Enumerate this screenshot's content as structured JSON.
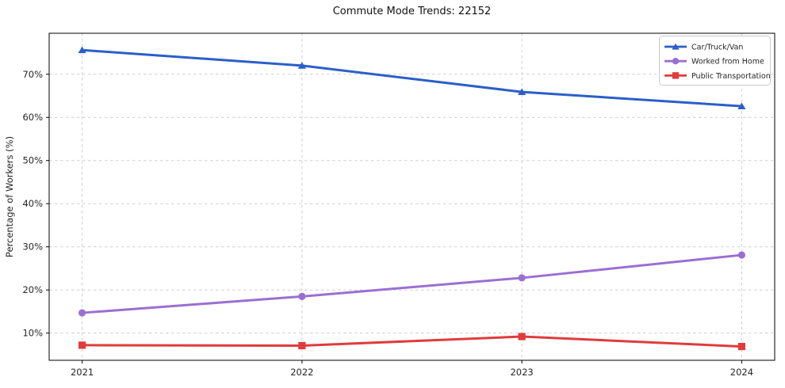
{
  "title": "Commute Mode Trends: 22152",
  "chart_data": {
    "type": "line",
    "x": [
      "2021",
      "2022",
      "2023",
      "2024"
    ],
    "series": [
      {
        "name": "Car/Truck/Van",
        "color": "#2b5fc8",
        "marker": "triangle",
        "values": [
          75.6,
          72.0,
          65.9,
          62.6
        ]
      },
      {
        "name": "Worked from Home",
        "color": "#9b6fd2",
        "marker": "circle",
        "values": [
          14.7,
          18.5,
          22.8,
          28.1
        ]
      },
      {
        "name": "Public Transportation",
        "color": "#e03c3c",
        "marker": "square",
        "values": [
          7.2,
          7.1,
          9.2,
          6.9
        ]
      }
    ],
    "xlabel": "",
    "ylabel": "Percentage of Workers (%)",
    "yticks": [
      10,
      20,
      30,
      40,
      50,
      60,
      70
    ],
    "ytick_format": "{v}%",
    "ylim": [
      3.7,
      79.5
    ],
    "grid": true,
    "grid_style": "dashed",
    "legend_position": "upper right",
    "style": {
      "grid_color": "#cfcfcf",
      "axis_color": "#000000",
      "text_color": "#262626",
      "background": "#ffffff",
      "legend_border": "#cccccc",
      "legend_bg": "#ffffff"
    }
  }
}
